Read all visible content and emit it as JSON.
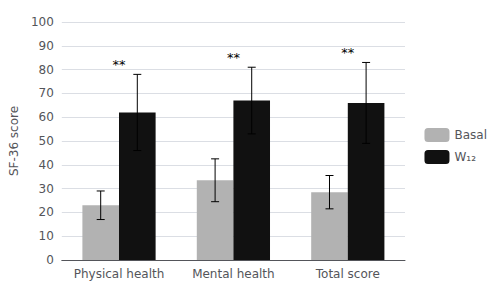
{
  "chart_data": {
    "type": "bar",
    "categories": [
      "Physical health",
      "Mental health",
      "Total score"
    ],
    "series": [
      {
        "name": "Basal",
        "color": "#b2b2b2",
        "values": [
          23.0,
          33.5,
          28.5
        ],
        "errors": [
          6.0,
          9.0,
          7.0
        ]
      },
      {
        "name": "W₁₂",
        "color": "#111111",
        "values": [
          62.0,
          67.0,
          66.0
        ],
        "errors": [
          16.0,
          14.0,
          17.0
        ]
      }
    ],
    "ylabel": "SF-36 score",
    "ylim": [
      0,
      100
    ],
    "yticks": [
      0,
      10,
      20,
      30,
      40,
      50,
      60,
      70,
      80,
      90,
      100
    ],
    "grid": true,
    "legend": "right",
    "annotations": [
      {
        "category": "Physical health",
        "text": "**"
      },
      {
        "category": "Mental health",
        "text": "**"
      },
      {
        "category": "Total score",
        "text": "**"
      }
    ]
  }
}
